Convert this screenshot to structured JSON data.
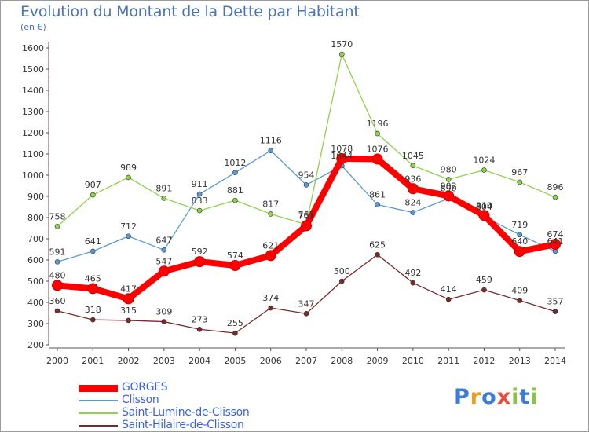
{
  "chart_data": {
    "type": "line",
    "title": "Evolution du Montant de la Dette par Habitant",
    "unit_label": "(en €)",
    "x": [
      "2000",
      "2001",
      "2002",
      "2003",
      "2004",
      "2005",
      "2006",
      "2007",
      "2008",
      "2009",
      "2010",
      "2011",
      "2012",
      "2013",
      "2014"
    ],
    "ylim": [
      200,
      1600
    ],
    "yticks": [
      200,
      300,
      400,
      500,
      600,
      700,
      800,
      900,
      1000,
      1100,
      1200,
      1300,
      1400,
      1500,
      1600
    ],
    "grid": false,
    "legend_position": "bottom-left",
    "series": [
      {
        "name": "GORGES",
        "color": "#ff0000",
        "values": [
          480,
          465,
          417,
          547,
          592,
          574,
          621,
          761,
          1078,
          1076,
          936,
          902,
          810,
          640,
          674
        ]
      },
      {
        "name": "Clisson",
        "color": "#5b9bd5",
        "values": [
          591,
          641,
          712,
          647,
          911,
          1012,
          1116,
          954,
          1044,
          861,
          824,
          890,
          804,
          719,
          641
        ]
      },
      {
        "name": "Saint-Lumine-de-Clisson",
        "color": "#8fd34b",
        "values": [
          758,
          907,
          989,
          891,
          833,
          881,
          817,
          767,
          1570,
          1196,
          1045,
          980,
          1024,
          967,
          896
        ]
      },
      {
        "name": "Saint-Hilaire-de-Clisson",
        "color": "#7a2a2a",
        "values": [
          360,
          318,
          315,
          309,
          273,
          255,
          374,
          347,
          500,
          625,
          492,
          414,
          459,
          409,
          357
        ]
      }
    ]
  },
  "logo": {
    "text": "Proxiti",
    "letters": [
      "P",
      "r",
      "o",
      "x",
      "i",
      "t",
      "i"
    ],
    "colors": [
      "#3b7dd8",
      "#f39c12",
      "#3b7dd8",
      "#e74c3c",
      "#8bc34a",
      "#3b7dd8",
      "#8bc34a"
    ]
  }
}
